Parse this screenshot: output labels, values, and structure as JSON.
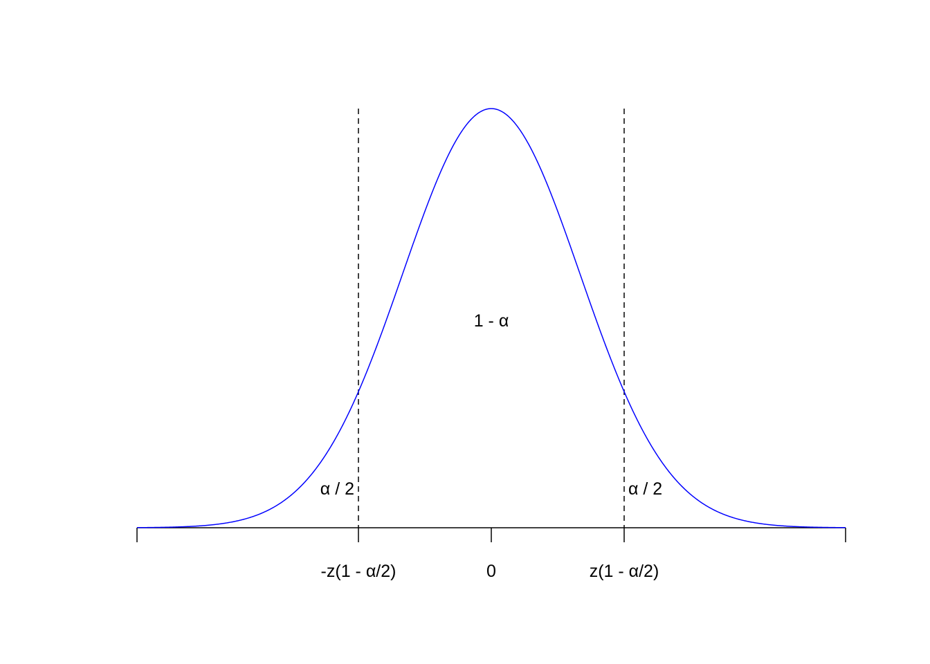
{
  "chart_data": {
    "type": "line",
    "title": "",
    "xlabel": "",
    "ylabel": "",
    "xlim": [
      -4,
      4
    ],
    "curve": "standard normal density",
    "critical_x": 1.5,
    "grid": false,
    "colors": {
      "curve": "#0000FF",
      "lines": "#000000"
    },
    "tick_labels": [
      {
        "x": -1.5,
        "label": "-z(1 - α/2)"
      },
      {
        "x": 0,
        "label": "0"
      },
      {
        "x": 1.5,
        "label": "z(1 - α/2)"
      }
    ],
    "annotations": {
      "center": "1 - α",
      "left_tail": "α / 2",
      "right_tail": "α / 2"
    }
  }
}
